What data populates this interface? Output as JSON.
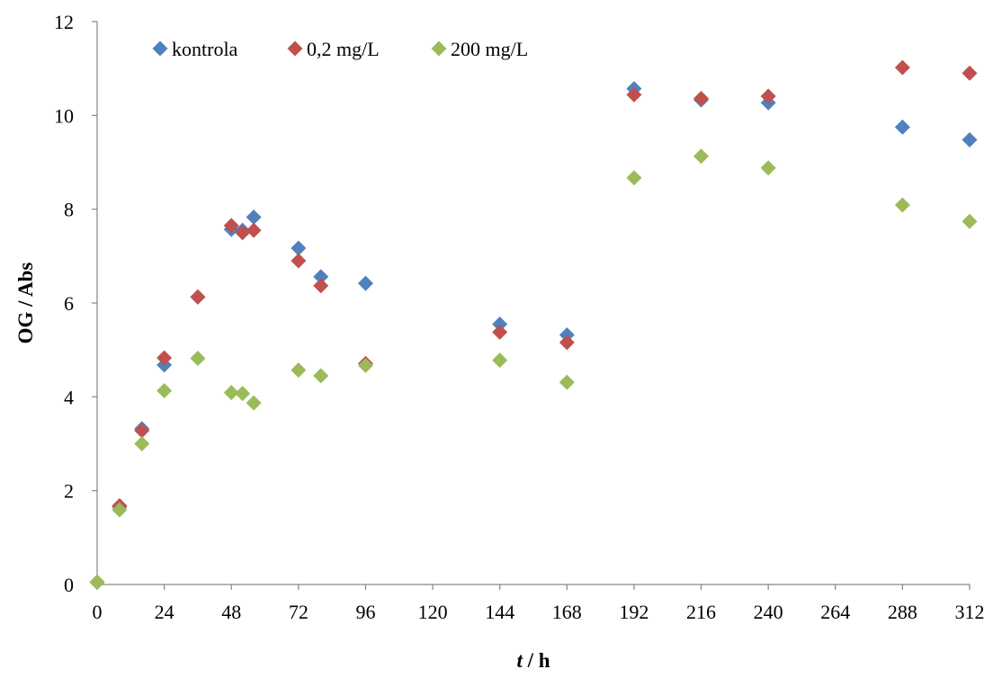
{
  "chart_data": {
    "type": "scatter",
    "title": "",
    "xlabel_italic": "t",
    "xlabel_rest": " / h",
    "ylabel": "OG / Abs",
    "xlim": [
      0,
      312
    ],
    "ylim": [
      0,
      12
    ],
    "xticks": [
      0,
      24,
      48,
      72,
      96,
      120,
      144,
      168,
      192,
      216,
      240,
      264,
      288,
      312
    ],
    "yticks": [
      0,
      2,
      4,
      6,
      8,
      10,
      12
    ],
    "grid": false,
    "legend_position": "top-left",
    "marker": "diamond",
    "series": [
      {
        "name": "kontrola",
        "color": "#4f81bd",
        "x": [
          0,
          8,
          16,
          24,
          36,
          48,
          52,
          56,
          72,
          80,
          96,
          144,
          168,
          192,
          216,
          240,
          288,
          312
        ],
        "y": [
          0.05,
          1.65,
          3.32,
          4.68,
          6.13,
          7.57,
          7.55,
          7.83,
          7.17,
          6.56,
          6.42,
          5.55,
          5.32,
          10.57,
          10.33,
          10.27,
          9.75,
          9.48
        ]
      },
      {
        "name": "0,2 mg/L",
        "color": "#c0504d",
        "x": [
          0,
          8,
          16,
          24,
          36,
          48,
          52,
          56,
          72,
          80,
          96,
          144,
          168,
          192,
          216,
          240,
          288,
          312
        ],
        "y": [
          0.05,
          1.68,
          3.28,
          4.83,
          6.13,
          7.65,
          7.5,
          7.55,
          6.9,
          6.37,
          4.71,
          5.38,
          5.16,
          10.44,
          10.36,
          10.41,
          11.02,
          10.9
        ]
      },
      {
        "name": "200 mg/L",
        "color": "#9bbb59",
        "x": [
          0,
          8,
          16,
          24,
          36,
          48,
          52,
          56,
          72,
          80,
          96,
          144,
          168,
          192,
          216,
          240,
          288,
          312
        ],
        "y": [
          0.05,
          1.59,
          3.0,
          4.13,
          4.82,
          4.09,
          4.07,
          3.87,
          4.57,
          4.45,
          4.67,
          4.78,
          4.31,
          8.67,
          9.13,
          8.88,
          8.09,
          7.74
        ]
      }
    ]
  }
}
